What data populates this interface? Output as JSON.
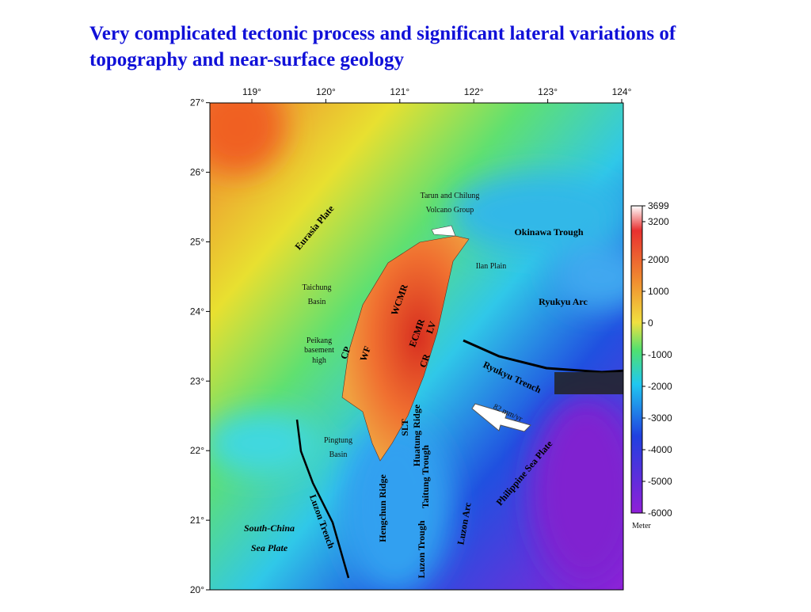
{
  "header": {
    "title_lines": [
      "Very complicated tectonic process and significant lateral variations of",
      "topography and near-surface geology"
    ]
  },
  "map": {
    "lon_ticks": [
      {
        "value": 119,
        "label": "119°"
      },
      {
        "value": 120,
        "label": "120°"
      },
      {
        "value": 121,
        "label": "121°"
      },
      {
        "value": 122,
        "label": "122°"
      },
      {
        "value": 123,
        "label": "123°"
      },
      {
        "value": 124,
        "label": "124°"
      }
    ],
    "lat_ticks": [
      {
        "value": 27,
        "label": "27°"
      },
      {
        "value": 26,
        "label": "26°"
      },
      {
        "value": 25,
        "label": "25°"
      },
      {
        "value": 24,
        "label": "24°"
      },
      {
        "value": 23,
        "label": "23°"
      },
      {
        "value": 22,
        "label": "22°"
      },
      {
        "value": 21,
        "label": "21°"
      },
      {
        "value": 20,
        "label": "20°"
      }
    ],
    "labels": [
      "Tarun and Chilung",
      "Volcano Group",
      "Okinawa Trough",
      "Eurasia Plate",
      "Ilan Plain",
      "Taichung",
      "Basin",
      "Ryukyu Arc",
      "Peikang",
      "basement",
      "high",
      "WCMR",
      "ECMR",
      "CP",
      "WF",
      "CR",
      "LV",
      "Ryukyu Trench",
      "82 mm/yr",
      "SLT",
      "Huatung Ridge",
      "Taitung Trough",
      "Pingtung",
      "Basin",
      "Philippine Sea Plate",
      "Luzon Trench",
      "South-China",
      "Sea Plate",
      "Hengchun Ridge",
      "Luzon Trough",
      "Luzon Arc"
    ]
  },
  "colorbar": {
    "lim": [
      -6000,
      3699
    ],
    "ticks": [
      3699,
      3200,
      2000,
      1000,
      0,
      -1000,
      -2000,
      -3000,
      -4000,
      -5000,
      -6000
    ],
    "unit": "Meter"
  }
}
